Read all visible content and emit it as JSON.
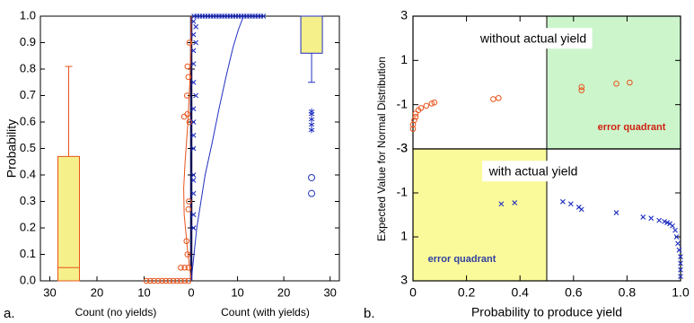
{
  "panel_labels": [
    "a.",
    "b."
  ],
  "chart_data": [
    {
      "type": "box",
      "ylabel": "Probability",
      "ylim": [
        0,
        1
      ],
      "yticks": [
        {
          "value": 0,
          "label": "0.0"
        },
        0.1,
        0.2,
        0.3,
        0.4,
        0.5,
        0.6,
        0.7,
        0.8,
        0.9,
        {
          "value": 1,
          "label": "1.0"
        }
      ],
      "left": {
        "xlabel": "Count (no yields)",
        "xlim": [
          32,
          0
        ],
        "xticks": [
          30,
          20,
          10,
          0
        ]
      },
      "right": {
        "xlabel": "Count (with yields)",
        "xlim": [
          0,
          32
        ],
        "xticks": [
          10,
          20,
          30
        ]
      },
      "boxes": [
        {
          "side": "left",
          "position": 26,
          "whislo": 0,
          "q1": 0,
          "med": 0.05,
          "q3": 0.47,
          "whishi": 0.81,
          "color": "#e8531a",
          "fill": "#f5f08a",
          "outliers": [],
          "far_outliers": []
        },
        {
          "side": "right",
          "position": 26,
          "whislo": 0.75,
          "q1": 0.86,
          "med": 1.0,
          "q3": 1.0,
          "whishi": 1.0,
          "color": "#2030c0",
          "fill": "#f5f08a",
          "outliers": [
            0.64,
            0.63,
            0.61,
            0.59,
            0.57
          ],
          "far_outliers": [
            0.39,
            0.33
          ]
        }
      ],
      "scatter": [
        {
          "side": "left",
          "color": "#e8531a",
          "marker": "circle",
          "x": [
            9.5,
            8.7,
            7.9,
            7.0,
            6.2,
            5.4,
            4.6,
            3.8,
            3.0,
            2.2,
            1.4,
            0.6,
            2.2,
            1.4,
            0.6,
            0.8,
            1.0,
            0.6,
            0.5,
            1.5,
            0.8,
            0.9,
            0.6,
            0.8,
            0.4,
            0.4
          ],
          "y": [
            0,
            0,
            0,
            0,
            0,
            0,
            0,
            0,
            0,
            0,
            0,
            0,
            0.05,
            0.05,
            0.05,
            0.1,
            0.15,
            0.27,
            0.3,
            0.62,
            0.63,
            0.7,
            0.77,
            0.81,
            0.9,
            0.6
          ]
        },
        {
          "side": "right",
          "color": "#2030c0",
          "marker": "x",
          "x": [
            0.6,
            1.2,
            1.8,
            2.4,
            3.0,
            3.6,
            4.2,
            4.8,
            5.4,
            6.0,
            6.6,
            7.2,
            7.8,
            8.4,
            9.0,
            9.6,
            10.2,
            10.8,
            11.4,
            12.0,
            12.6,
            13.2,
            13.8,
            14.4,
            15.0,
            15.6,
            0.5,
            1.0,
            0.5,
            1.0,
            0.5,
            0.5,
            0.5,
            1.0,
            0.5,
            0.5,
            0.5,
            0.5,
            0.5,
            0.5,
            0.5,
            0.5,
            0.5
          ],
          "y": [
            1,
            1,
            1,
            1,
            1,
            1,
            1,
            1,
            1,
            1,
            1,
            1,
            1,
            1,
            1,
            1,
            1,
            1,
            1,
            1,
            1,
            1,
            1,
            1,
            1,
            1,
            0.98,
            0.96,
            0.93,
            0.9,
            0.87,
            0.82,
            0.75,
            0.7,
            0.65,
            0.6,
            0.55,
            0.5,
            0.4,
            0.38,
            0.33,
            0.25,
            0.2
          ]
        }
      ],
      "curves": [
        {
          "side": "left",
          "color": "#e8531a",
          "x": [
            0,
            0.8,
            1.5,
            1.6,
            1.3,
            0.7,
            0.3,
            0.1,
            0
          ],
          "y": [
            0,
            0.12,
            0.25,
            0.35,
            0.45,
            0.6,
            0.75,
            0.88,
            1
          ]
        },
        {
          "side": "right",
          "color": "#2030c0",
          "x": [
            0,
            0.3,
            1.2,
            3,
            4.5,
            6,
            7.5,
            9,
            10.2,
            11.3
          ],
          "y": [
            0,
            0.05,
            0.2,
            0.4,
            0.52,
            0.65,
            0.77,
            0.88,
            0.95,
            1
          ]
        }
      ]
    },
    {
      "type": "scatter",
      "ylabel": "Expected Value for Normal Distribution",
      "xlim": [
        0,
        1
      ],
      "ylim": [
        -3,
        3
      ],
      "yticks": [
        3,
        1,
        -1,
        -3
      ],
      "annotation": "without actual yield",
      "regions": [
        {
          "x0": 0.5,
          "x1": 1,
          "y0": -3,
          "y1": 3,
          "color": "#ccf5cc",
          "label": "error quadrant",
          "label_color": "#d02010"
        }
      ],
      "series": [
        {
          "color": "#e8531a",
          "marker": "circle",
          "x": [
            0,
            0,
            0.005,
            0.01,
            0.01,
            0.02,
            0.03,
            0.05,
            0.07,
            0.08,
            0.3,
            0.32,
            0.63,
            0.63,
            0.76,
            0.81
          ],
          "y": [
            -2.1,
            -1.9,
            -1.7,
            -1.55,
            -1.4,
            -1.25,
            -1.15,
            -1.05,
            -0.95,
            -0.9,
            -0.75,
            -0.7,
            -0.35,
            -0.2,
            -0.05,
            0
          ]
        }
      ]
    },
    {
      "type": "scatter",
      "xlabel": "Probability to produce yield",
      "xlim": [
        0,
        1
      ],
      "xticks": [
        0,
        0.2,
        0.4,
        0.6,
        0.8,
        {
          "value": 1,
          "label": "1.0"
        }
      ],
      "ylim": [
        3,
        -3
      ],
      "yticks": [
        -3,
        -1,
        1,
        3
      ],
      "annotation": "with actual yield",
      "regions": [
        {
          "x0": 0,
          "x1": 0.5,
          "y0": -3,
          "y1": 3,
          "color": "#fafa9a",
          "label": "error quadrant",
          "label_color": "#3040a0"
        }
      ],
      "series": [
        {
          "color": "#2030c0",
          "marker": "x",
          "x": [
            0.33,
            0.38,
            0.56,
            0.59,
            0.62,
            0.63,
            0.76,
            0.86,
            0.89,
            0.92,
            0.94,
            0.95,
            0.96,
            0.97,
            0.98,
            0.985,
            0.99,
            0.995,
            1,
            1,
            1,
            1
          ],
          "y": [
            -0.5,
            -0.55,
            -0.6,
            -0.5,
            -0.35,
            -0.25,
            -0.1,
            0.1,
            0.15,
            0.25,
            0.3,
            0.35,
            0.4,
            0.5,
            0.7,
            1.0,
            1.3,
            1.6,
            1.9,
            2.2,
            2.5,
            2.8
          ]
        }
      ]
    }
  ]
}
